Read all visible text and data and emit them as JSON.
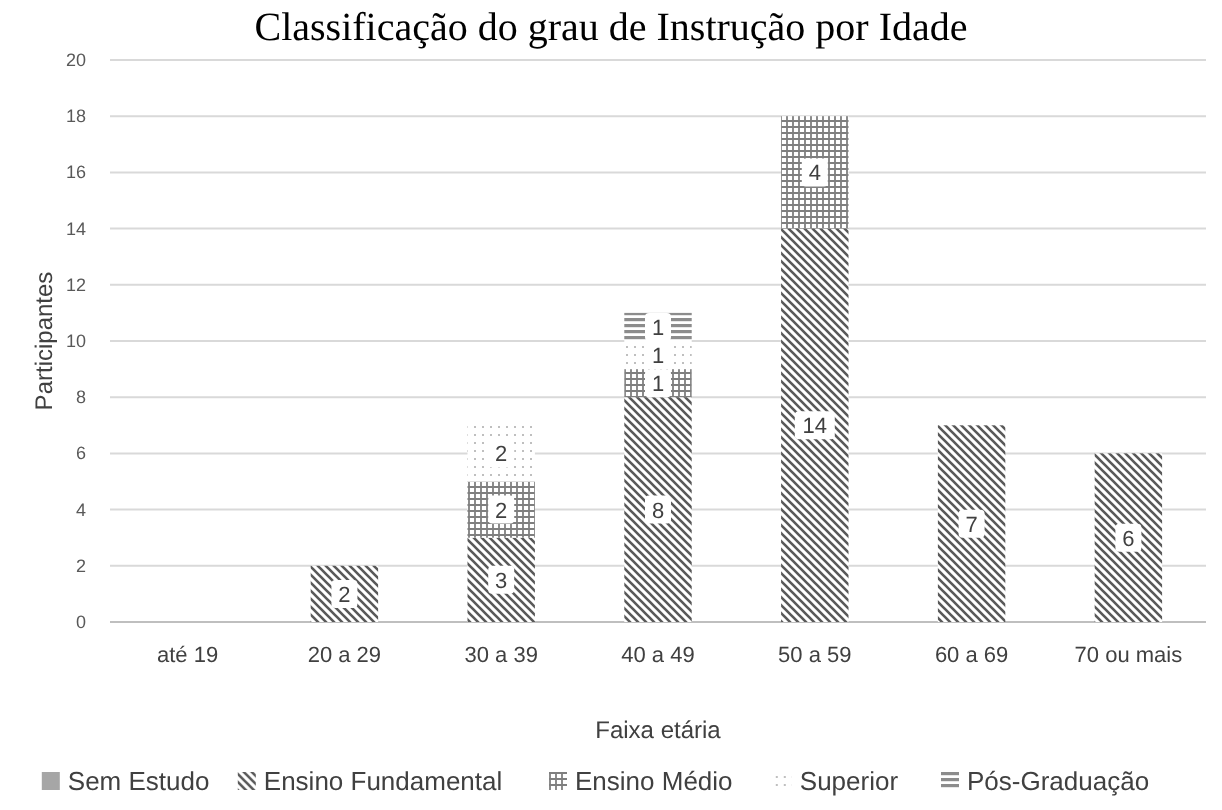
{
  "chart_data": {
    "type": "bar",
    "title": "Classificação do grau de Instrução por Idade",
    "xlabel": "Faixa etária",
    "ylabel": "Participantes",
    "categories": [
      "até 19",
      "20 a 29",
      "30 a 39",
      "40 a 49",
      "50 a 59",
      "60 a 69",
      "70 ou mais"
    ],
    "stacked": true,
    "ylim": [
      0,
      20
    ],
    "yticks": [
      0,
      2,
      4,
      6,
      8,
      10,
      12,
      14,
      16,
      18,
      20
    ],
    "grid": "y",
    "legend": "bottom",
    "series": [
      {
        "name": "Sem Estudo",
        "color": "#a6a6a6",
        "values": [
          0,
          0,
          0,
          0,
          0,
          0,
          0
        ],
        "value_labels": [
          null,
          null,
          null,
          null,
          null,
          null,
          null
        ]
      },
      {
        "name": "Ensino Fundamental",
        "color": "#595959",
        "values": [
          0,
          2,
          3,
          8,
          14,
          7,
          6
        ],
        "value_labels": [
          null,
          "2",
          "3",
          "8",
          "14",
          "7",
          "6"
        ]
      },
      {
        "name": "Ensino Médio",
        "color": "#7f7f7f",
        "values": [
          0,
          0,
          2,
          1,
          4,
          0,
          0
        ],
        "value_labels": [
          null,
          null,
          "2",
          "1",
          "4",
          null,
          null
        ]
      },
      {
        "name": "Superior",
        "color": "#bfbfbf",
        "values": [
          0,
          0,
          2,
          1,
          0,
          0,
          0
        ],
        "value_labels": [
          null,
          null,
          "2",
          "1",
          null,
          null,
          null
        ]
      },
      {
        "name": "Pós-Graduação",
        "color": "#8c8c8c",
        "values": [
          0,
          0,
          0,
          1,
          0,
          0,
          0
        ],
        "value_labels": [
          null,
          null,
          null,
          "1",
          null,
          null,
          null
        ]
      }
    ]
  }
}
